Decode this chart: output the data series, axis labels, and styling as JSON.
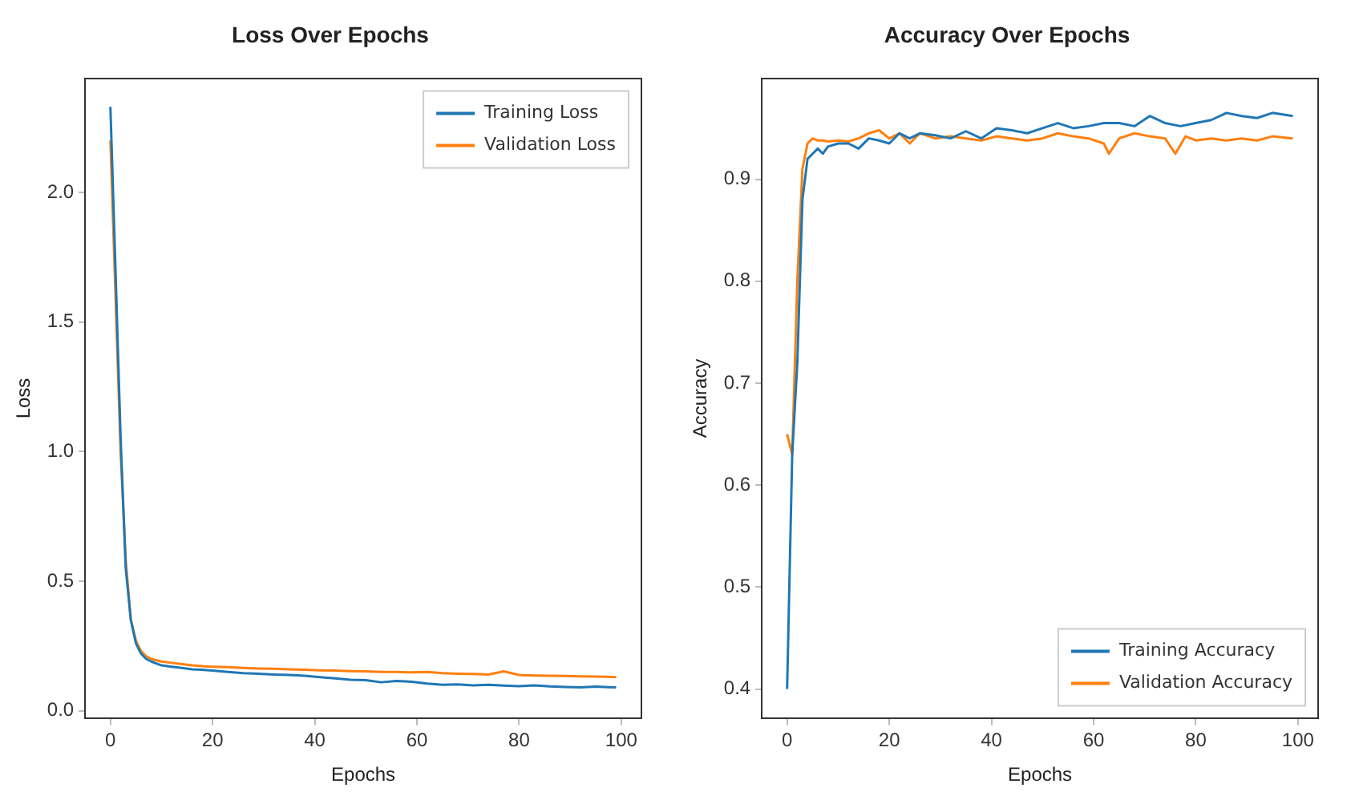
{
  "chart_data": [
    {
      "type": "line",
      "title": "Loss Over Epochs",
      "xlabel": "Epochs",
      "ylabel": "Loss",
      "xlim": [
        -4.95,
        103.95
      ],
      "xticks": [
        0,
        20,
        40,
        60,
        80,
        100
      ],
      "ylim": [
        -0.03,
        2.44
      ],
      "yticks": [
        {
          "value": 0,
          "label": "0.0"
        },
        0.5,
        {
          "value": 1,
          "label": "1.0"
        },
        1.5,
        {
          "value": 2,
          "label": "2.0"
        }
      ],
      "grid": false,
      "legend": "top right",
      "marker": "none",
      "line_style": "solid",
      "series": [
        {
          "name": "Training Loss",
          "color": "#1f77b4",
          "x": [
            0,
            1,
            2,
            3,
            4,
            5,
            6,
            7,
            8,
            10,
            12,
            14,
            16,
            18,
            20,
            23,
            26,
            29,
            32,
            35,
            38,
            41,
            44,
            47,
            50,
            53,
            56,
            59,
            62,
            65,
            68,
            71,
            74,
            77,
            80,
            83,
            86,
            89,
            92,
            95,
            99
          ],
          "values": [
            2.33,
            1.7,
            1.05,
            0.55,
            0.35,
            0.26,
            0.22,
            0.2,
            0.19,
            0.175,
            0.17,
            0.165,
            0.16,
            0.158,
            0.155,
            0.15,
            0.145,
            0.143,
            0.14,
            0.138,
            0.135,
            0.13,
            0.125,
            0.12,
            0.118,
            0.11,
            0.115,
            0.112,
            0.105,
            0.1,
            0.102,
            0.098,
            0.1,
            0.097,
            0.095,
            0.098,
            0.094,
            0.092,
            0.09,
            0.093,
            0.09
          ]
        },
        {
          "name": "Validation Loss",
          "color": "#ff7f0e",
          "x": [
            0,
            1,
            2,
            3,
            4,
            5,
            6,
            7,
            8,
            10,
            12,
            14,
            16,
            18,
            20,
            23,
            26,
            29,
            32,
            35,
            38,
            41,
            44,
            47,
            50,
            53,
            56,
            59,
            62,
            65,
            68,
            71,
            74,
            77,
            80,
            83,
            86,
            89,
            92,
            95,
            99
          ],
          "values": [
            2.2,
            1.6,
            1.0,
            0.58,
            0.35,
            0.27,
            0.23,
            0.21,
            0.2,
            0.19,
            0.185,
            0.18,
            0.175,
            0.172,
            0.17,
            0.168,
            0.165,
            0.163,
            0.162,
            0.16,
            0.158,
            0.156,
            0.155,
            0.153,
            0.152,
            0.15,
            0.15,
            0.148,
            0.15,
            0.145,
            0.143,
            0.142,
            0.14,
            0.152,
            0.138,
            0.136,
            0.135,
            0.134,
            0.133,
            0.132,
            0.13
          ]
        }
      ]
    },
    {
      "type": "line",
      "title": "Accuracy Over Epochs",
      "xlabel": "Epochs",
      "ylabel": "Accuracy",
      "xlim": [
        -4.95,
        103.95
      ],
      "xticks": [
        0,
        20,
        40,
        60,
        80,
        100
      ],
      "ylim": [
        0.371,
        0.999
      ],
      "yticks": [
        0.4,
        0.5,
        0.6,
        0.7,
        0.8,
        0.9
      ],
      "grid": false,
      "legend": "bottom right",
      "marker": "none",
      "line_style": "solid",
      "series": [
        {
          "name": "Training Accuracy",
          "color": "#1f77b4",
          "x": [
            0,
            1,
            2,
            3,
            4,
            5,
            6,
            7,
            8,
            10,
            12,
            14,
            16,
            18,
            20,
            22,
            24,
            26,
            29,
            32,
            35,
            38,
            41,
            44,
            47,
            50,
            53,
            56,
            59,
            62,
            65,
            68,
            71,
            74,
            77,
            80,
            83,
            86,
            89,
            92,
            95,
            99
          ],
          "values": [
            0.4,
            0.63,
            0.72,
            0.88,
            0.92,
            0.925,
            0.93,
            0.925,
            0.932,
            0.935,
            0.935,
            0.93,
            0.94,
            0.938,
            0.935,
            0.945,
            0.94,
            0.945,
            0.943,
            0.94,
            0.947,
            0.94,
            0.95,
            0.948,
            0.945,
            0.95,
            0.955,
            0.95,
            0.952,
            0.955,
            0.955,
            0.952,
            0.962,
            0.955,
            0.952,
            0.955,
            0.958,
            0.965,
            0.962,
            0.96,
            0.965,
            0.962
          ]
        },
        {
          "name": "Validation Accuracy",
          "color": "#ff7f0e",
          "x": [
            0,
            1,
            2,
            3,
            4,
            5,
            6,
            7,
            8,
            10,
            12,
            14,
            16,
            18,
            20,
            22,
            24,
            26,
            29,
            32,
            35,
            38,
            41,
            44,
            47,
            50,
            53,
            56,
            59,
            62,
            63,
            65,
            68,
            71,
            74,
            76,
            78,
            80,
            83,
            86,
            89,
            92,
            95,
            99
          ],
          "values": [
            0.65,
            0.63,
            0.8,
            0.91,
            0.935,
            0.94,
            0.938,
            0.938,
            0.937,
            0.938,
            0.937,
            0.94,
            0.945,
            0.948,
            0.94,
            0.945,
            0.935,
            0.945,
            0.94,
            0.942,
            0.94,
            0.938,
            0.942,
            0.94,
            0.938,
            0.94,
            0.945,
            0.942,
            0.94,
            0.935,
            0.925,
            0.94,
            0.945,
            0.942,
            0.94,
            0.925,
            0.942,
            0.938,
            0.94,
            0.938,
            0.94,
            0.938,
            0.942,
            0.94
          ]
        }
      ]
    }
  ]
}
